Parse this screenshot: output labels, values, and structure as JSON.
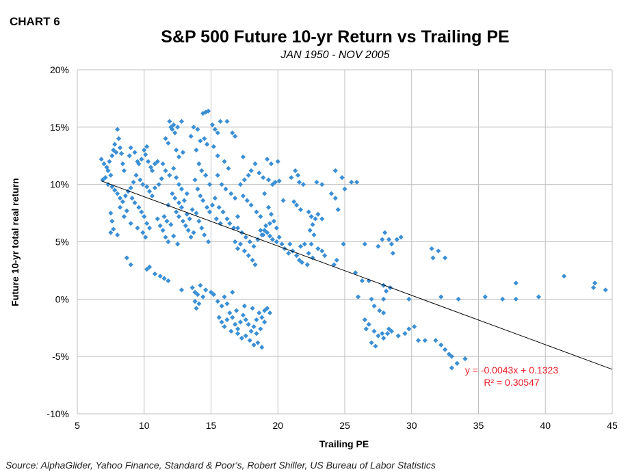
{
  "header": {
    "chart_label": "CHART 6",
    "title": "S&P 500 Future 10-yr Return vs Trailing PE",
    "subtitle": "JAN 1950 - NOV 2005"
  },
  "source": "Source: AlphaGlider, Yahoo Finance, Standard & Poor's, Robert Shiller, US Bureau of Labor Statistics",
  "colors": {
    "points": "#3b8fd4",
    "trendline": "#000000",
    "equation": "#e8202a",
    "grid": "#bfbfbf"
  },
  "chart_data": {
    "type": "scatter",
    "xlabel": "Trailing PE",
    "ylabel": "Future 10-yr total real return",
    "xlim": [
      5,
      45
    ],
    "ylim": [
      -0.1,
      0.2
    ],
    "xticks": [
      5,
      10,
      15,
      20,
      25,
      30,
      35,
      40,
      45
    ],
    "xtick_labels": [
      "5",
      "10",
      "15",
      "20",
      "25",
      "30",
      "35",
      "40",
      "45"
    ],
    "yticks": [
      0.2,
      0.15,
      0.1,
      0.05,
      0.0,
      -0.05,
      -0.1
    ],
    "ytick_labels": [
      "20%",
      "15%",
      "10%",
      "5%",
      "0%",
      "-5%",
      "-10%"
    ],
    "grid": true,
    "trendline": {
      "slope": -0.0043,
      "intercept": 0.1323,
      "x_range": [
        6.8,
        45
      ]
    },
    "equation_text": "y = -0.0043x + 0.1323",
    "r2_text": "R² = 0.30547",
    "points": [
      [
        6.8,
        0.122
      ],
      [
        7.0,
        0.118
      ],
      [
        7.2,
        0.115
      ],
      [
        7.3,
        0.112
      ],
      [
        7.4,
        0.12
      ],
      [
        7.5,
        0.108
      ],
      [
        7.6,
        0.125
      ],
      [
        7.7,
        0.13
      ],
      [
        7.8,
        0.135
      ],
      [
        7.9,
        0.128
      ],
      [
        8.0,
        0.148
      ],
      [
        8.1,
        0.14
      ],
      [
        8.2,
        0.132
      ],
      [
        8.3,
        0.127
      ],
      [
        8.4,
        0.118
      ],
      [
        8.5,
        0.112
      ],
      [
        7.1,
        0.106
      ],
      [
        7.3,
        0.1
      ],
      [
        6.9,
        0.104
      ],
      [
        7.6,
        0.098
      ],
      [
        7.8,
        0.095
      ],
      [
        8.0,
        0.092
      ],
      [
        8.2,
        0.088
      ],
      [
        8.4,
        0.085
      ],
      [
        8.6,
        0.09
      ],
      [
        8.8,
        0.094
      ],
      [
        9.0,
        0.097
      ],
      [
        9.2,
        0.102
      ],
      [
        7.5,
        0.075
      ],
      [
        7.6,
        0.068
      ],
      [
        7.5,
        0.058
      ],
      [
        7.7,
        0.061
      ],
      [
        8.0,
        0.056
      ],
      [
        8.2,
        0.08
      ],
      [
        8.5,
        0.072
      ],
      [
        8.7,
        0.077
      ],
      [
        8.9,
        0.125
      ],
      [
        9.0,
        0.132
      ],
      [
        9.3,
        0.128
      ],
      [
        9.5,
        0.12
      ],
      [
        9.6,
        0.118
      ],
      [
        9.8,
        0.122
      ],
      [
        10.0,
        0.13
      ],
      [
        10.1,
        0.126
      ],
      [
        10.2,
        0.133
      ],
      [
        10.3,
        0.12
      ],
      [
        10.5,
        0.115
      ],
      [
        10.6,
        0.112
      ],
      [
        10.8,
        0.118
      ],
      [
        11.0,
        0.12
      ],
      [
        9.4,
        0.108
      ],
      [
        9.7,
        0.104
      ],
      [
        9.9,
        0.1
      ],
      [
        10.2,
        0.098
      ],
      [
        10.4,
        0.094
      ],
      [
        10.6,
        0.09
      ],
      [
        10.8,
        0.097
      ],
      [
        11.1,
        0.1
      ],
      [
        11.3,
        0.105
      ],
      [
        9.1,
        0.088
      ],
      [
        9.3,
        0.084
      ],
      [
        9.6,
        0.08
      ],
      [
        9.8,
        0.076
      ],
      [
        10.0,
        0.072
      ],
      [
        10.2,
        0.066
      ],
      [
        10.4,
        0.062
      ],
      [
        9.5,
        0.062
      ],
      [
        9.9,
        0.058
      ],
      [
        10.1,
        0.054
      ],
      [
        9.0,
        0.066
      ],
      [
        8.7,
        0.036
      ],
      [
        9.0,
        0.03
      ],
      [
        11.0,
        0.07
      ],
      [
        11.2,
        0.064
      ],
      [
        11.4,
        0.06
      ],
      [
        11.6,
        0.054
      ],
      [
        11.8,
        0.05
      ],
      [
        12.0,
        0.065
      ],
      [
        11.5,
        0.072
      ],
      [
        11.7,
        0.068
      ],
      [
        10.2,
        0.026
      ],
      [
        10.4,
        0.028
      ],
      [
        10.8,
        0.022
      ],
      [
        11.2,
        0.02
      ],
      [
        11.5,
        0.018
      ],
      [
        11.8,
        0.016
      ],
      [
        11.9,
        0.155
      ],
      [
        12.0,
        0.15
      ],
      [
        12.1,
        0.148
      ],
      [
        12.2,
        0.152
      ],
      [
        12.3,
        0.145
      ],
      [
        12.5,
        0.15
      ],
      [
        12.8,
        0.155
      ],
      [
        11.6,
        0.14
      ],
      [
        11.8,
        0.136
      ],
      [
        12.4,
        0.13
      ],
      [
        12.6,
        0.124
      ],
      [
        12.9,
        0.128
      ],
      [
        11.4,
        0.118
      ],
      [
        11.6,
        0.112
      ],
      [
        11.9,
        0.108
      ],
      [
        12.2,
        0.114
      ],
      [
        12.4,
        0.106
      ],
      [
        12.6,
        0.1
      ],
      [
        12.8,
        0.096
      ],
      [
        12.1,
        0.092
      ],
      [
        12.3,
        0.088
      ],
      [
        12.6,
        0.084
      ],
      [
        12.8,
        0.08
      ],
      [
        13.0,
        0.086
      ],
      [
        13.2,
        0.092
      ],
      [
        11.8,
        0.082
      ],
      [
        12.4,
        0.076
      ],
      [
        12.6,
        0.072
      ],
      [
        12.9,
        0.068
      ],
      [
        13.1,
        0.064
      ],
      [
        13.3,
        0.06
      ],
      [
        13.5,
        0.054
      ],
      [
        13.7,
        0.058
      ],
      [
        13.2,
        0.074
      ],
      [
        13.4,
        0.07
      ],
      [
        13.6,
        0.078
      ],
      [
        12.2,
        0.055
      ],
      [
        12.5,
        0.048
      ],
      [
        12.8,
        0.008
      ],
      [
        13.5,
        0.142
      ],
      [
        13.7,
        0.15
      ],
      [
        14.0,
        0.148
      ],
      [
        14.2,
        0.138
      ],
      [
        14.4,
        0.162
      ],
      [
        14.6,
        0.163
      ],
      [
        14.8,
        0.164
      ],
      [
        14.5,
        0.14
      ],
      [
        14.7,
        0.135
      ],
      [
        13.9,
        0.13
      ],
      [
        14.1,
        0.118
      ],
      [
        14.3,
        0.112
      ],
      [
        14.6,
        0.108
      ],
      [
        14.9,
        0.1
      ],
      [
        13.8,
        0.104
      ],
      [
        14.0,
        0.096
      ],
      [
        14.2,
        0.09
      ],
      [
        14.4,
        0.086
      ],
      [
        14.7,
        0.08
      ],
      [
        14.9,
        0.076
      ],
      [
        15.1,
        0.082
      ],
      [
        15.3,
        0.088
      ],
      [
        13.9,
        0.075
      ],
      [
        14.1,
        0.068
      ],
      [
        14.3,
        0.062
      ],
      [
        14.5,
        0.056
      ],
      [
        14.8,
        0.05
      ],
      [
        15.1,
        0.152
      ],
      [
        15.3,
        0.148
      ],
      [
        15.5,
        0.145
      ],
      [
        15.7,
        0.155
      ],
      [
        15.2,
        0.133
      ],
      [
        15.5,
        0.125
      ],
      [
        16.2,
        0.155
      ],
      [
        16.6,
        0.145
      ],
      [
        16.8,
        0.142
      ],
      [
        16.0,
        0.12
      ],
      [
        16.3,
        0.114
      ],
      [
        15.5,
        0.108
      ],
      [
        15.8,
        0.1
      ],
      [
        16.1,
        0.096
      ],
      [
        16.5,
        0.092
      ],
      [
        16.8,
        0.088
      ],
      [
        15.6,
        0.08
      ],
      [
        15.9,
        0.076
      ],
      [
        16.2,
        0.07
      ],
      [
        16.4,
        0.066
      ],
      [
        16.7,
        0.062
      ],
      [
        15.4,
        0.07
      ],
      [
        15.7,
        0.066
      ],
      [
        17.0,
        0.072
      ],
      [
        17.2,
        0.1
      ],
      [
        17.5,
        0.104
      ],
      [
        17.8,
        0.108
      ],
      [
        18.0,
        0.112
      ],
      [
        18.3,
        0.118
      ],
      [
        18.6,
        0.11
      ],
      [
        18.9,
        0.106
      ],
      [
        17.4,
        0.09
      ],
      [
        17.7,
        0.086
      ],
      [
        18.0,
        0.082
      ],
      [
        18.4,
        0.076
      ],
      [
        18.7,
        0.072
      ],
      [
        17.0,
        0.062
      ],
      [
        17.3,
        0.058
      ],
      [
        17.6,
        0.054
      ],
      [
        17.9,
        0.05
      ],
      [
        18.2,
        0.046
      ],
      [
        18.5,
        0.052
      ],
      [
        18.8,
        0.056
      ],
      [
        19.0,
        0.06
      ],
      [
        17.2,
        0.048
      ],
      [
        17.5,
        0.042
      ],
      [
        17.8,
        0.038
      ],
      [
        18.1,
        0.034
      ],
      [
        18.3,
        0.03
      ],
      [
        17.0,
        0.044
      ],
      [
        16.8,
        0.05
      ],
      [
        17.4,
        0.124
      ],
      [
        19.2,
        0.122
      ],
      [
        19.5,
        0.118
      ],
      [
        20.0,
        0.12
      ],
      [
        19.3,
        0.104
      ],
      [
        19.6,
        0.1
      ],
      [
        19.8,
        0.102
      ],
      [
        20.1,
        0.103
      ],
      [
        19.0,
        0.092
      ],
      [
        19.3,
        0.08
      ],
      [
        19.5,
        0.074
      ],
      [
        19.7,
        0.068
      ],
      [
        19.9,
        0.062
      ],
      [
        19.2,
        0.058
      ],
      [
        19.4,
        0.055
      ],
      [
        19.6,
        0.052
      ],
      [
        19.9,
        0.05
      ],
      [
        20.1,
        0.054
      ],
      [
        20.3,
        0.048
      ],
      [
        19.1,
        0.064
      ],
      [
        19.4,
        0.066
      ],
      [
        18.9,
        0.056
      ],
      [
        18.7,
        0.06
      ],
      [
        20.4,
        0.086
      ],
      [
        21.0,
        0.106
      ],
      [
        21.3,
        0.112
      ],
      [
        21.5,
        0.108
      ],
      [
        21.6,
        0.102
      ],
      [
        21.9,
        0.1
      ],
      [
        21.2,
        0.085
      ],
      [
        21.4,
        0.082
      ],
      [
        21.7,
        0.078
      ],
      [
        20.5,
        0.044
      ],
      [
        20.8,
        0.04
      ],
      [
        21.1,
        0.042
      ],
      [
        21.4,
        0.038
      ],
      [
        21.7,
        0.046
      ],
      [
        22.0,
        0.048
      ],
      [
        22.3,
        0.04
      ],
      [
        22.6,
        0.036
      ],
      [
        21.8,
        0.032
      ],
      [
        22.2,
        0.03
      ],
      [
        20.9,
        0.048
      ],
      [
        21.6,
        0.034
      ],
      [
        22.3,
        0.076
      ],
      [
        22.5,
        0.072
      ],
      [
        22.8,
        0.07
      ],
      [
        22.6,
        0.065
      ],
      [
        22.4,
        0.06
      ],
      [
        22.7,
        0.056
      ],
      [
        23.0,
        0.074
      ],
      [
        23.3,
        0.07
      ],
      [
        22.5,
        0.048
      ],
      [
        23.0,
        0.044
      ],
      [
        23.3,
        0.042
      ],
      [
        23.5,
        0.038
      ],
      [
        22.9,
        0.102
      ],
      [
        23.3,
        0.1
      ],
      [
        24.0,
        0.092
      ],
      [
        24.3,
        0.088
      ],
      [
        24.5,
        0.078
      ],
      [
        24.3,
        0.112
      ],
      [
        24.8,
        0.106
      ],
      [
        25.0,
        0.096
      ],
      [
        25.5,
        0.102
      ],
      [
        25.9,
        0.102
      ],
      [
        24.4,
        0.034
      ],
      [
        24.2,
        0.03
      ],
      [
        24.9,
        0.048
      ],
      [
        25.8,
        0.023
      ],
      [
        26.0,
        0.002
      ],
      [
        26.3,
        0.016
      ],
      [
        26.5,
        0.048
      ],
      [
        26.8,
        0.016
      ],
      [
        27.0,
        0.0
      ],
      [
        27.2,
        -0.006
      ],
      [
        27.5,
        0.046
      ],
      [
        27.8,
        0.052
      ],
      [
        28.0,
        0.058
      ],
      [
        28.3,
        0.052
      ],
      [
        28.5,
        0.048
      ],
      [
        27.9,
        0.012
      ],
      [
        28.1,
        0.007
      ],
      [
        28.4,
        0.01
      ],
      [
        27.9,
        0.0
      ],
      [
        28.6,
        0.04
      ],
      [
        28.9,
        0.052
      ],
      [
        29.2,
        0.054
      ],
      [
        26.5,
        -0.018
      ],
      [
        26.8,
        -0.022
      ],
      [
        27.2,
        -0.028
      ],
      [
        27.5,
        -0.032
      ],
      [
        27.8,
        -0.03
      ],
      [
        26.6,
        -0.026
      ],
      [
        27.0,
        -0.038
      ],
      [
        27.3,
        -0.041
      ],
      [
        27.9,
        -0.034
      ],
      [
        28.2,
        -0.03
      ],
      [
        28.5,
        -0.028
      ],
      [
        27.6,
        -0.01
      ],
      [
        27.9,
        -0.012
      ],
      [
        28.3,
        -0.026
      ],
      [
        29.0,
        -0.032
      ],
      [
        29.5,
        -0.03
      ],
      [
        29.8,
        -0.026
      ],
      [
        30.2,
        -0.024
      ],
      [
        30.5,
        -0.036
      ],
      [
        31.0,
        -0.036
      ],
      [
        31.8,
        -0.036
      ],
      [
        32.2,
        -0.04
      ],
      [
        32.5,
        -0.044
      ],
      [
        32.8,
        -0.048
      ],
      [
        33.0,
        -0.05
      ],
      [
        33.4,
        -0.056
      ],
      [
        33.0,
        -0.06
      ],
      [
        34.0,
        -0.052
      ],
      [
        31.5,
        0.044
      ],
      [
        31.6,
        0.036
      ],
      [
        32.0,
        0.042
      ],
      [
        32.5,
        0.036
      ],
      [
        32.2,
        0.002
      ],
      [
        33.5,
        0.0
      ],
      [
        35.5,
        0.002
      ],
      [
        36.8,
        0.0
      ],
      [
        37.8,
        0.0
      ],
      [
        37.8,
        0.014
      ],
      [
        39.5,
        0.002
      ],
      [
        41.4,
        0.02
      ],
      [
        43.7,
        0.014
      ],
      [
        43.6,
        0.01
      ],
      [
        44.5,
        0.008
      ],
      [
        29.8,
        0.0
      ],
      [
        13.6,
        0.01
      ],
      [
        13.8,
        0.006
      ],
      [
        14.0,
        0.004
      ],
      [
        14.2,
        0.012
      ],
      [
        14.4,
        0.002
      ],
      [
        13.9,
        -0.008
      ],
      [
        14.6,
        0.008
      ],
      [
        15.0,
        0.006
      ],
      [
        15.2,
        0.004
      ],
      [
        15.5,
        -0.002
      ],
      [
        15.8,
        -0.006
      ],
      [
        16.0,
        0.002
      ],
      [
        16.2,
        -0.004
      ],
      [
        13.8,
        -0.002
      ],
      [
        14.1,
        -0.004
      ],
      [
        16.6,
        0.006
      ],
      [
        15.6,
        -0.016
      ],
      [
        15.8,
        -0.02
      ],
      [
        16.0,
        -0.024
      ],
      [
        16.2,
        -0.018
      ],
      [
        16.4,
        -0.012
      ],
      [
        16.6,
        -0.016
      ],
      [
        16.8,
        -0.022
      ],
      [
        17.0,
        -0.026
      ],
      [
        17.2,
        -0.02
      ],
      [
        17.4,
        -0.014
      ],
      [
        17.6,
        -0.018
      ],
      [
        17.8,
        -0.022
      ],
      [
        18.0,
        -0.028
      ],
      [
        18.2,
        -0.024
      ],
      [
        18.4,
        -0.018
      ],
      [
        18.6,
        -0.012
      ],
      [
        18.8,
        -0.016
      ],
      [
        19.0,
        -0.01
      ],
      [
        19.2,
        -0.008
      ],
      [
        19.4,
        -0.012
      ],
      [
        17.0,
        -0.03
      ],
      [
        17.3,
        -0.034
      ],
      [
        17.6,
        -0.032
      ],
      [
        17.9,
        -0.036
      ],
      [
        18.2,
        -0.04
      ],
      [
        18.5,
        -0.038
      ],
      [
        18.8,
        -0.042
      ],
      [
        16.5,
        -0.028
      ],
      [
        16.9,
        -0.01
      ],
      [
        17.5,
        -0.006
      ],
      [
        18.1,
        -0.008
      ],
      [
        18.4,
        -0.03
      ],
      [
        18.7,
        -0.026
      ],
      [
        19.0,
        -0.02
      ]
    ]
  }
}
